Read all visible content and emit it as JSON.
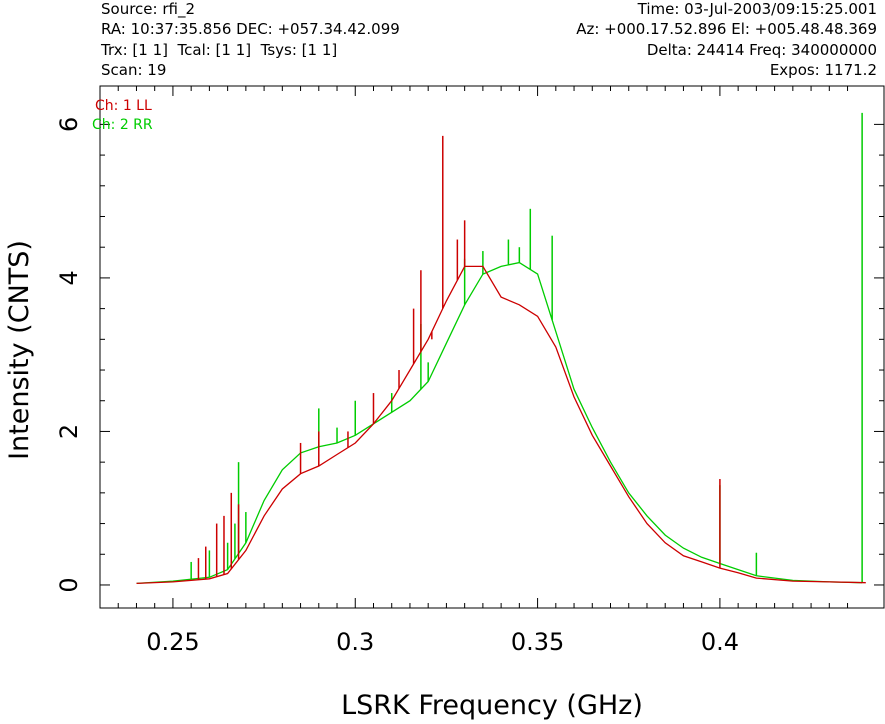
{
  "header": {
    "source": "Source: rfi_2",
    "time": "Time: 03-Jul-2003/09:15:25.001",
    "ra_dec": "RA: 10:37:35.856 DEC: +057.34.42.099",
    "az_el": "Az: +000.17.52.896 El: +005.48.48.369",
    "trx_line": "Trx: [1 1]  Tcal: [1 1]  Tsys: [1 1]",
    "delta_freq": "Delta: 24414 Freq: 340000000",
    "scan": "Scan: 19",
    "expos": "Expos: 1171.2"
  },
  "chart_data": {
    "type": "line",
    "title": "",
    "xlabel": "LSRK Frequency (GHz)",
    "ylabel": "Intensity (CNTS)",
    "xlim": [
      0.23,
      0.445
    ],
    "ylim": [
      -0.3,
      6.5
    ],
    "xticks": [
      0.25,
      0.3,
      0.35,
      0.4
    ],
    "xtick_labels": [
      "0.25",
      "0.3",
      "0.35",
      "0.4"
    ],
    "yticks": [
      0,
      2,
      4,
      6
    ],
    "ytick_labels": [
      "0",
      "2",
      "4",
      "6"
    ],
    "legend_position": "top-left",
    "series": [
      {
        "name": "Ch: 1 LL",
        "color": "#cc0000",
        "x": [
          0.24,
          0.25,
          0.26,
          0.265,
          0.27,
          0.275,
          0.28,
          0.285,
          0.29,
          0.295,
          0.3,
          0.305,
          0.31,
          0.315,
          0.32,
          0.325,
          0.33,
          0.335,
          0.34,
          0.345,
          0.35,
          0.355,
          0.36,
          0.365,
          0.37,
          0.375,
          0.38,
          0.385,
          0.39,
          0.395,
          0.4,
          0.405,
          0.41,
          0.42,
          0.43,
          0.44
        ],
        "y": [
          0.02,
          0.04,
          0.08,
          0.15,
          0.45,
          0.9,
          1.25,
          1.45,
          1.55,
          1.7,
          1.85,
          2.1,
          2.4,
          2.8,
          3.2,
          3.7,
          4.15,
          4.15,
          3.75,
          3.65,
          3.5,
          3.1,
          2.45,
          1.95,
          1.55,
          1.15,
          0.8,
          0.55,
          0.38,
          0.3,
          0.22,
          0.16,
          0.09,
          0.05,
          0.04,
          0.03
        ],
        "spikes": [
          {
            "x": 0.257,
            "y": 0.35
          },
          {
            "x": 0.259,
            "y": 0.5
          },
          {
            "x": 0.262,
            "y": 0.8
          },
          {
            "x": 0.264,
            "y": 0.9
          },
          {
            "x": 0.266,
            "y": 1.2
          },
          {
            "x": 0.268,
            "y": 1.05
          },
          {
            "x": 0.285,
            "y": 1.85
          },
          {
            "x": 0.29,
            "y": 2.0
          },
          {
            "x": 0.298,
            "y": 2.0
          },
          {
            "x": 0.305,
            "y": 2.5
          },
          {
            "x": 0.312,
            "y": 2.8
          },
          {
            "x": 0.316,
            "y": 3.6
          },
          {
            "x": 0.318,
            "y": 4.1
          },
          {
            "x": 0.321,
            "y": 3.2
          },
          {
            "x": 0.324,
            "y": 5.85
          },
          {
            "x": 0.328,
            "y": 4.5
          },
          {
            "x": 0.33,
            "y": 4.75
          },
          {
            "x": 0.4,
            "y": 1.38
          }
        ]
      },
      {
        "name": "Ch: 2 RR",
        "color": "#00cc00",
        "x": [
          0.24,
          0.25,
          0.26,
          0.265,
          0.27,
          0.275,
          0.28,
          0.285,
          0.29,
          0.295,
          0.3,
          0.305,
          0.31,
          0.315,
          0.32,
          0.325,
          0.33,
          0.335,
          0.34,
          0.345,
          0.35,
          0.355,
          0.36,
          0.365,
          0.37,
          0.375,
          0.38,
          0.385,
          0.39,
          0.395,
          0.4,
          0.405,
          0.41,
          0.42,
          0.43,
          0.439
        ],
        "y": [
          0.02,
          0.05,
          0.1,
          0.2,
          0.55,
          1.1,
          1.5,
          1.72,
          1.8,
          1.85,
          1.95,
          2.1,
          2.25,
          2.4,
          2.65,
          3.15,
          3.65,
          4.05,
          4.15,
          4.2,
          4.05,
          3.3,
          2.55,
          2.05,
          1.6,
          1.2,
          0.9,
          0.65,
          0.48,
          0.36,
          0.28,
          0.2,
          0.12,
          0.06,
          0.04,
          0.03
        ],
        "spikes": [
          {
            "x": 0.255,
            "y": 0.3
          },
          {
            "x": 0.26,
            "y": 0.45
          },
          {
            "x": 0.265,
            "y": 0.55
          },
          {
            "x": 0.267,
            "y": 0.8
          },
          {
            "x": 0.268,
            "y": 1.6
          },
          {
            "x": 0.27,
            "y": 0.95
          },
          {
            "x": 0.29,
            "y": 2.3
          },
          {
            "x": 0.295,
            "y": 2.05
          },
          {
            "x": 0.3,
            "y": 2.4
          },
          {
            "x": 0.31,
            "y": 2.5
          },
          {
            "x": 0.318,
            "y": 3.4
          },
          {
            "x": 0.32,
            "y": 2.9
          },
          {
            "x": 0.33,
            "y": 4.25
          },
          {
            "x": 0.335,
            "y": 4.35
          },
          {
            "x": 0.342,
            "y": 4.5
          },
          {
            "x": 0.345,
            "y": 4.4
          },
          {
            "x": 0.348,
            "y": 4.9
          },
          {
            "x": 0.354,
            "y": 4.55
          },
          {
            "x": 0.4,
            "y": 1.3
          },
          {
            "x": 0.41,
            "y": 0.42
          },
          {
            "x": 0.439,
            "y": 6.15
          }
        ]
      }
    ]
  }
}
